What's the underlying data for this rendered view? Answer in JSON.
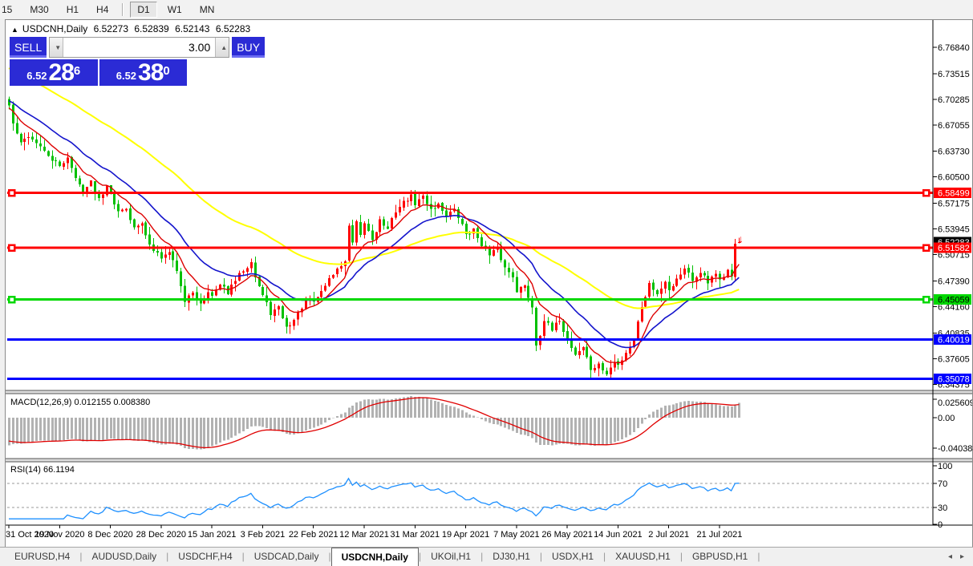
{
  "toolbar": {
    "items": [
      "15",
      "M30",
      "H1",
      "H4",
      "D1",
      "W1",
      "MN"
    ],
    "active": "D1",
    "separator_after": "H4"
  },
  "chart": {
    "collapse_icon": "▲",
    "symbol_label": "USDCNH,Daily",
    "ohlc": {
      "open": "6.52273",
      "high": "6.52839",
      "low": "6.52143",
      "close": "6.52283"
    },
    "trade_panel": {
      "sell_label": "SELL",
      "buy_label": "BUY",
      "volume": "3.00",
      "spin_down_icon": "▼",
      "spin_up_icon": "▲",
      "sell_price_small": "6.52",
      "sell_price_big": "28",
      "sell_price_sup": "6",
      "buy_price_small": "6.52",
      "buy_price_big": "38",
      "buy_price_sup": "0"
    }
  },
  "chart_data": {
    "type": "candlestick",
    "symbol": "USDCNH",
    "timeframe": "Daily",
    "colors": {
      "up_candle": "#ff0000",
      "down_candle": "#00c000",
      "ma_yellow": "#ffff00",
      "ma_blue": "#1414cc",
      "ma_red": "#dd0000",
      "macd_hist": "#b2b2b2",
      "macd_signal": "#e00000",
      "rsi_line": "#1e90ff",
      "line_red": "#ff0000",
      "line_green": "#00d800",
      "line_blue": "#0000ff"
    },
    "x_axis": {
      "labels": [
        "31 Oct 2020",
        "19 Nov 2020",
        "8 Dec 2020",
        "28 Dec 2020",
        "15 Jan 2021",
        "3 Feb 2021",
        "22 Feb 2021",
        "12 Mar 2021",
        "31 Mar 2021",
        "19 Apr 2021",
        "7 May 2021",
        "26 May 2021",
        "14 Jun 2021",
        "2 Jul 2021",
        "21 Jul 2021"
      ],
      "candles_per_tick": 13
    },
    "y_axis": {
      "labels": [
        "6.76840",
        "6.73515",
        "6.70285",
        "6.67055",
        "6.63730",
        "6.60500",
        "6.57175",
        "6.53945",
        "6.50715",
        "6.47390",
        "6.44160",
        "6.40835",
        "6.37605",
        "6.34375"
      ]
    },
    "current_price": {
      "value": 6.52283,
      "label": "6.52283"
    },
    "horizontal_lines": [
      {
        "price": 6.58499,
        "label": "6.58499",
        "color": "#ff0000",
        "text": "#ffffff",
        "handles": true
      },
      {
        "price": 6.51582,
        "label": "6.51582",
        "color": "#ff0000",
        "text": "#ffffff",
        "handles": true
      },
      {
        "price": 6.45059,
        "label": "6.45059",
        "color": "#00d800",
        "text": "#000000",
        "handles": true
      },
      {
        "price": 6.40019,
        "label": "6.40019",
        "color": "#0000ff",
        "text": "#ffffff",
        "handles": false
      },
      {
        "price": 6.35078,
        "label": "6.35078",
        "color": "#0000ff",
        "text": "#ffffff",
        "handles": false
      }
    ],
    "synth": {
      "count": 188,
      "seed": 42,
      "noise": 0.004,
      "gap": 0.002,
      "wick": 0.01
    },
    "close_keypoints": [
      [
        0,
        6.695
      ],
      [
        1,
        6.672
      ],
      [
        2,
        6.66
      ],
      [
        3,
        6.648
      ],
      [
        5,
        6.656
      ],
      [
        7,
        6.648
      ],
      [
        9,
        6.637
      ],
      [
        11,
        6.626
      ],
      [
        13,
        6.618
      ],
      [
        15,
        6.63
      ],
      [
        17,
        6.603
      ],
      [
        19,
        6.586
      ],
      [
        21,
        6.6
      ],
      [
        23,
        6.578
      ],
      [
        25,
        6.595
      ],
      [
        26,
        6.585
      ],
      [
        28,
        6.561
      ],
      [
        30,
        6.566
      ],
      [
        32,
        6.541
      ],
      [
        34,
        6.546
      ],
      [
        36,
        6.52
      ],
      [
        38,
        6.511
      ],
      [
        39,
        6.502
      ],
      [
        41,
        6.511
      ],
      [
        43,
        6.487
      ],
      [
        44,
        6.468
      ],
      [
        45,
        6.447
      ],
      [
        47,
        6.459
      ],
      [
        49,
        6.446
      ],
      [
        51,
        6.461
      ],
      [
        52,
        6.455
      ],
      [
        54,
        6.469
      ],
      [
        56,
        6.458
      ],
      [
        58,
        6.474
      ],
      [
        60,
        6.487
      ],
      [
        62,
        6.499
      ],
      [
        63,
        6.479
      ],
      [
        65,
        6.456
      ],
      [
        67,
        6.432
      ],
      [
        69,
        6.441
      ],
      [
        71,
        6.416
      ],
      [
        73,
        6.425
      ],
      [
        75,
        6.44
      ],
      [
        77,
        6.451
      ],
      [
        78,
        6.447
      ],
      [
        80,
        6.461
      ],
      [
        82,
        6.477
      ],
      [
        84,
        6.489
      ],
      [
        86,
        6.499
      ],
      [
        87,
        6.543
      ],
      [
        88,
        6.522
      ],
      [
        89,
        6.548
      ],
      [
        90,
        6.531
      ],
      [
        91,
        6.547
      ],
      [
        93,
        6.526
      ],
      [
        95,
        6.551
      ],
      [
        97,
        6.539
      ],
      [
        99,
        6.561
      ],
      [
        101,
        6.574
      ],
      [
        103,
        6.582
      ],
      [
        104,
        6.57
      ],
      [
        106,
        6.581
      ],
      [
        108,
        6.565
      ],
      [
        110,
        6.571
      ],
      [
        112,
        6.556
      ],
      [
        114,
        6.564
      ],
      [
        116,
        6.545
      ],
      [
        117,
        6.533
      ],
      [
        119,
        6.539
      ],
      [
        121,
        6.519
      ],
      [
        123,
        6.506
      ],
      [
        125,
        6.514
      ],
      [
        127,
        6.491
      ],
      [
        129,
        6.479
      ],
      [
        130,
        6.461
      ],
      [
        132,
        6.468
      ],
      [
        134,
        6.441
      ],
      [
        135,
        6.393
      ],
      [
        137,
        6.424
      ],
      [
        139,
        6.411
      ],
      [
        141,
        6.424
      ],
      [
        143,
        6.401
      ],
      [
        145,
        6.381
      ],
      [
        147,
        6.391
      ],
      [
        149,
        6.362
      ],
      [
        151,
        6.369
      ],
      [
        153,
        6.356
      ],
      [
        155,
        6.372
      ],
      [
        156,
        6.368
      ],
      [
        158,
        6.384
      ],
      [
        160,
        6.401
      ],
      [
        162,
        6.442
      ],
      [
        164,
        6.471
      ],
      [
        166,
        6.458
      ],
      [
        168,
        6.474
      ],
      [
        169,
        6.462
      ],
      [
        171,
        6.477
      ],
      [
        173,
        6.489
      ],
      [
        175,
        6.473
      ],
      [
        177,
        6.485
      ],
      [
        179,
        6.471
      ],
      [
        181,
        6.482
      ],
      [
        182,
        6.476
      ],
      [
        184,
        6.488
      ],
      [
        185,
        6.479
      ],
      [
        186,
        6.521
      ],
      [
        187,
        6.52283
      ]
    ],
    "spike_candle": {
      "index": 186,
      "open": 6.479,
      "close": 6.521,
      "high": 6.527,
      "low": 6.474
    },
    "final_candle": {
      "index": 187,
      "open": 6.52273,
      "high": 6.52839,
      "low": 6.52143,
      "close": 6.52283
    },
    "sell_arrow": {
      "glyph": "↓",
      "color": "#ff0000",
      "price": 6.5315
    },
    "moving_averages": [
      {
        "name": "slow-ma",
        "color": "#ffff00",
        "period": 60,
        "start": 6.742,
        "width": 2
      },
      {
        "name": "mid-ma",
        "color": "#1414cc",
        "period": 21,
        "start": 6.701,
        "width": 1.6
      },
      {
        "name": "fast-ma",
        "color": "#dd0000",
        "period": 9,
        "start": 6.692,
        "width": 1.4
      }
    ],
    "indicators": {
      "macd": {
        "display": "MACD(12,26,9) 0.012155 0.008380",
        "fast": 12,
        "slow": 26,
        "signal": 9,
        "value_main": "0.012155",
        "value_signal": "0.008380",
        "axis_labels": [
          "0.025609",
          "0.00",
          "-0.040386"
        ]
      },
      "rsi": {
        "display": "RSI(14) 66.1194",
        "period": 14,
        "value": "66.1194",
        "axis_labels": [
          "100",
          "70",
          "30",
          "0"
        ],
        "levels": [
          70,
          30
        ]
      }
    }
  },
  "tabs": {
    "items": [
      "EURUSD,H4",
      "AUDUSD,Daily",
      "USDCHF,H4",
      "USDCAD,Daily",
      "USDCNH,Daily",
      "UKOil,H1",
      "DJ30,H1",
      "USDX,H1",
      "XAUUSD,H1",
      "GBPUSD,H1"
    ],
    "active": "USDCNH,Daily",
    "scroll_left_icon": "◂",
    "scroll_right_icon": "▸"
  }
}
